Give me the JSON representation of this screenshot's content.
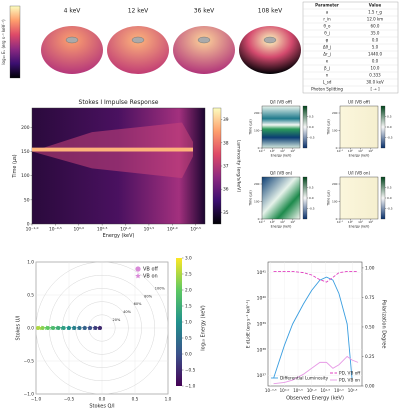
{
  "chart_data": [
    {
      "type": "image",
      "labels": [
        "4 keV",
        "12 keV",
        "36 keV",
        "108 keV"
      ],
      "colorbar_label": "log₁₀ Eᵥ (erg s⁻¹ keV⁻¹)"
    },
    {
      "type": "heatmap",
      "title": "Stokes I Impulse Response",
      "x_label": "Energy (keV)",
      "y_label": "Time (μs)",
      "xlog": true,
      "xlim": [
        0.1,
        500
      ],
      "xticks": [
        {
          "value": 0.1,
          "label": "10⁻¹·⁰"
        },
        {
          "value": 0.316,
          "label": "10⁻⁰·⁵"
        },
        {
          "value": 1,
          "label": "10⁰·⁰"
        },
        {
          "value": 3.16,
          "label": "10⁰·⁵"
        },
        {
          "value": 10,
          "label": "10¹·⁰"
        },
        {
          "value": 31.6,
          "label": "10¹·⁵"
        },
        {
          "value": 100,
          "label": "10²·⁰"
        },
        {
          "value": 316,
          "label": "10²·⁵"
        }
      ],
      "ylim": [
        0,
        240
      ],
      "yticks": [
        0,
        50,
        100,
        150,
        200
      ],
      "colorbar_label": "Luminosity (erg/s/keV)",
      "clim": [
        34.5,
        39.5
      ],
      "cticks": [
        35,
        36,
        37,
        38,
        39
      ]
    },
    {
      "type": "heatmap",
      "title": "Q/I (VB off)",
      "x_label": "Energy (keV)",
      "y_label": "Time (μs)",
      "xlog": true,
      "xlim": [
        0.1,
        500
      ],
      "xticks": [
        {
          "value": 0.1,
          "label": "10⁻¹"
        },
        {
          "value": 1,
          "label": "10⁰"
        },
        {
          "value": 10,
          "label": "10¹"
        },
        {
          "value": 100,
          "label": "10²"
        }
      ],
      "ylim": [
        0,
        240
      ],
      "yticks": [
        0,
        100,
        200
      ],
      "clim": [
        -1,
        1
      ],
      "cticks": [
        -0.5,
        {
          "value": 0,
          "label": "0.0"
        },
        0.5
      ]
    },
    {
      "type": "heatmap",
      "title": "U/I (VB off)",
      "x_label": "Energy (keV)",
      "y_label": "Time (μs)",
      "xlog": true,
      "xlim": [
        0.1,
        500
      ],
      "xticks": [
        {
          "value": 0.1,
          "label": "10⁻¹"
        },
        {
          "value": 1,
          "label": "10⁰"
        },
        {
          "value": 10,
          "label": "10¹"
        },
        {
          "value": 100,
          "label": "10²"
        }
      ],
      "ylim": [
        0,
        240
      ],
      "yticks": [
        0,
        100,
        200
      ],
      "clim": [
        -1,
        1
      ],
      "cticks": [
        -0.5,
        {
          "value": 0,
          "label": "0.0"
        },
        0.5
      ]
    },
    {
      "type": "heatmap",
      "title": "Q/I (VB on)",
      "x_label": "Energy (keV)",
      "y_label": "Time (μs)",
      "xlog": true,
      "xlim": [
        0.1,
        500
      ],
      "xticks": [
        {
          "value": 0.1,
          "label": "10⁻¹"
        },
        {
          "value": 1,
          "label": "10⁰"
        },
        {
          "value": 10,
          "label": "10¹"
        },
        {
          "value": 100,
          "label": "10²"
        }
      ],
      "ylim": [
        0,
        240
      ],
      "yticks": [
        0,
        100,
        200
      ],
      "clim": [
        -1,
        1
      ],
      "cticks": [
        -0.5,
        {
          "value": 0,
          "label": "0.0"
        },
        0.5
      ]
    },
    {
      "type": "heatmap",
      "title": "U/I (VB on)",
      "x_label": "Energy (keV)",
      "y_label": "Time (μs)",
      "xlog": true,
      "xlim": [
        0.1,
        500
      ],
      "xticks": [
        {
          "value": 0.1,
          "label": "10⁻¹"
        },
        {
          "value": 1,
          "label": "10⁰"
        },
        {
          "value": 10,
          "label": "10¹"
        },
        {
          "value": 100,
          "label": "10²"
        }
      ],
      "ylim": [
        0,
        240
      ],
      "yticks": [
        0,
        100,
        200
      ],
      "clim": [
        -1,
        1
      ],
      "cticks": [
        -0.5,
        {
          "value": 0,
          "label": "0.0"
        },
        0.5
      ]
    },
    {
      "type": "scatter",
      "x_label": "Stokes Q/I",
      "y_label": "Stokes U/I",
      "xlim": [
        -1,
        1
      ],
      "ylim": [
        -1,
        1
      ],
      "xticks": [
        {
          "value": -1,
          "label": "−1.0"
        },
        {
          "value": -0.5,
          "label": "−0.5"
        },
        {
          "value": 0,
          "label": "0.0"
        },
        {
          "value": 0.5,
          "label": "0.5"
        },
        {
          "value": 1,
          "label": "1.0"
        }
      ],
      "yticks": [
        {
          "value": -1,
          "label": "−1.0"
        },
        {
          "value": -0.5,
          "label": "−0.5"
        },
        {
          "value": 0,
          "label": "0.0"
        },
        {
          "value": 0.5,
          "label": "0.5"
        },
        {
          "value": 1,
          "label": "1.0"
        }
      ],
      "rings": [
        {
          "value": 0.2,
          "label": "20%"
        },
        {
          "value": 0.4,
          "label": "40%"
        },
        {
          "value": 0.6,
          "label": "60%"
        },
        {
          "value": 0.8,
          "label": "80%"
        },
        {
          "value": 1,
          "label": "100%"
        }
      ],
      "colorbar_label": "log₁₀ Energy (keV)",
      "clim": [
        -1,
        3
      ],
      "cticks": [
        {
          "value": -1,
          "label": "−1.0"
        },
        {
          "value": -0.5,
          "label": "−0.5"
        },
        {
          "value": 0,
          "label": "0.0"
        },
        0.5,
        {
          "value": 1,
          "label": "1.0"
        },
        1.5,
        {
          "value": 2,
          "label": "2.0"
        },
        2.5,
        {
          "value": 3,
          "label": "3.0"
        }
      ],
      "series": [
        {
          "name": "VB off",
          "marker": "circle",
          "color": "#d98ad8",
          "x": [
            -0.03,
            -0.1,
            -0.18,
            -0.26,
            -0.34,
            -0.42,
            -0.5,
            -0.58,
            -0.66,
            -0.74,
            -0.82,
            -0.9,
            -0.97
          ],
          "values": [
            0,
            0,
            0,
            0,
            0,
            0,
            0,
            0,
            0,
            0,
            0,
            0,
            0
          ],
          "c": [
            -0.5,
            -0.25,
            0,
            0.25,
            0.5,
            0.75,
            1,
            1.25,
            1.5,
            1.75,
            2,
            2.25,
            2.5
          ]
        },
        {
          "name": "VB on",
          "marker": "star",
          "color": "#d98ad8",
          "x": [
            -0.04,
            -0.11,
            -0.19,
            -0.27,
            -0.35,
            -0.43,
            -0.51,
            -0.6,
            -0.68,
            -0.76,
            -0.84,
            -0.91,
            -0.95
          ],
          "values": [
            0,
            0,
            0,
            0,
            0,
            0,
            0,
            0,
            0,
            0,
            0,
            0,
            0
          ],
          "c": [
            -0.5,
            -0.25,
            0,
            0.25,
            0.5,
            0.75,
            1,
            1.25,
            1.5,
            1.75,
            2,
            2.25,
            2.5
          ]
        }
      ]
    },
    {
      "type": "line",
      "x_label": "Observed Energy (keV)",
      "y_label": "E dL/dE (erg s⁻¹ keV⁻¹)",
      "y2_label": "Polarization Degree",
      "xlog": true,
      "ylog": true,
      "xlim": [
        0.25,
        700
      ],
      "ylim": [
        4e+36,
        2.5e+41
      ],
      "y2lim": [
        0,
        1.05
      ],
      "xticks": [
        {
          "value": 0.316,
          "label": "10⁻⁰·⁵"
        },
        {
          "value": 1,
          "label": "10⁰·⁰"
        },
        {
          "value": 3.16,
          "label": "10⁰·⁵"
        },
        {
          "value": 10,
          "label": "10¹·⁰"
        },
        {
          "value": 31.6,
          "label": "10¹·⁵"
        },
        {
          "value": 100,
          "label": "10²·⁰"
        },
        {
          "value": 316,
          "label": "10²·⁵"
        }
      ],
      "yticks": [
        {
          "value": 1e+37,
          "label": "10³⁷"
        },
        {
          "value": 1e+38,
          "label": "10³⁸"
        },
        {
          "value": 1e+39,
          "label": "10³⁹"
        },
        {
          "value": 1e+40,
          "label": "10⁴⁰"
        },
        {
          "value": 1e+41,
          "label": "10⁴¹"
        }
      ],
      "y2ticks": [
        {
          "value": 0,
          "label": "0.00"
        },
        0.25,
        {
          "value": 0.5,
          "label": "0.50"
        },
        0.75,
        {
          "value": 1,
          "label": "1.00"
        }
      ],
      "x": [
        0.4,
        1,
        2,
        5,
        10,
        20,
        35,
        60,
        100,
        200,
        300,
        500
      ],
      "series": [
        {
          "name": "Differential Luminosity",
          "color": "#3a9ee0",
          "dash": false,
          "values": [
            8e+36,
            1.5e+38,
            1e+39,
            6e+39,
            2e+40,
            5e+40,
            6.5e+40,
            5e+40,
            1.5e+40,
            1e+39,
            8e+36,
            null
          ]
        },
        {
          "name": "PD, VB off",
          "color": "#e040c0",
          "dash": true,
          "axis": "y2",
          "values": [
            0.97,
            0.97,
            0.97,
            0.96,
            0.94,
            0.9,
            0.88,
            0.92,
            0.96,
            0.97,
            0.97,
            0.97
          ]
        },
        {
          "name": "PD, VB on",
          "color": "#e79ae6",
          "dash": false,
          "axis": "y2",
          "values": [
            0.02,
            0.03,
            0.05,
            0.1,
            0.15,
            0.2,
            0.2,
            0.15,
            0.18,
            0.25,
            0.22,
            0.2
          ]
        }
      ]
    }
  ],
  "table": {
    "header": [
      "Parameter",
      "Value"
    ],
    "rows": [
      [
        "a",
        "1.5 r_g"
      ],
      [
        "r_in",
        "12.0 km"
      ],
      [
        "θ_o",
        "60.0"
      ],
      [
        "θ_j",
        "35.0"
      ],
      [
        "φ",
        "0.0"
      ],
      [
        "Δθ_j",
        "5.0"
      ],
      [
        "Δr_j",
        "1440.0"
      ],
      [
        "κ",
        "0.0"
      ],
      [
        "β_j",
        "10.0"
      ],
      [
        "n",
        "0.333"
      ],
      [
        "L_sd",
        "30.0 keV"
      ],
      [
        "Photon Splitting",
        "[ → ]"
      ]
    ]
  }
}
